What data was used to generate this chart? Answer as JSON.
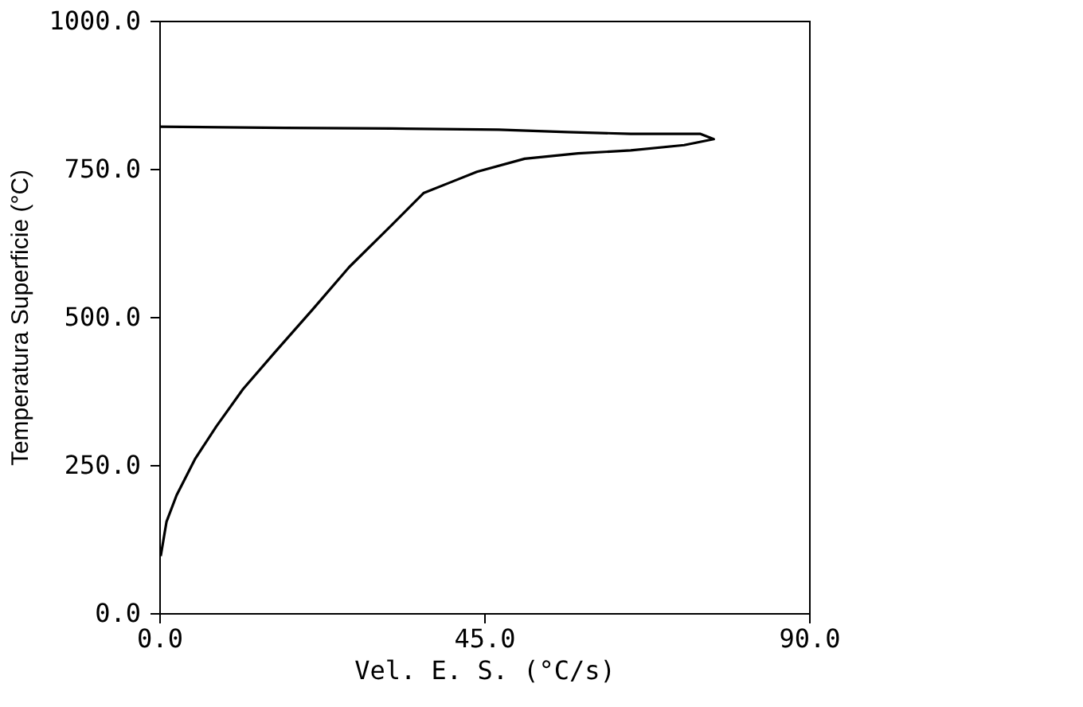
{
  "chart_data": {
    "type": "line",
    "xlabel": "Vel. E. S. (°C/s)",
    "ylabel": "Temperatura Superficie (°C)",
    "xlim": [
      0,
      90
    ],
    "ylim": [
      0,
      1000
    ],
    "xticks": [
      {
        "value": 0,
        "label": "0.0"
      },
      {
        "value": 45,
        "label": "45.0"
      },
      {
        "value": 90,
        "label": "90.0"
      }
    ],
    "yticks": [
      {
        "value": 0,
        "label": "0.0"
      },
      {
        "value": 250,
        "label": "250.0"
      },
      {
        "value": 500,
        "label": "500.0"
      },
      {
        "value": 750,
        "label": "750.0"
      },
      {
        "value": 1000,
        "label": "1000.0"
      }
    ],
    "grid": false,
    "series": [
      {
        "color": "#000000",
        "x": [
          0.2,
          1.0,
          2.4,
          5.0,
          7.9,
          11.6,
          16.0,
          21.2,
          26.3,
          32.2,
          36.6,
          40.3,
          44.0,
          50.6,
          58.0,
          65.3,
          72.7,
          76.8,
          74.9,
          65.3,
          56.5,
          47.0,
          32.2,
          17.5,
          0
        ],
        "values": [
          96,
          154,
          199,
          261,
          315,
          378,
          440,
          512,
          584,
          655,
          709,
          727,
          745,
          767,
          776,
          781,
          790,
          800,
          809,
          809,
          812,
          816,
          818,
          819,
          821
        ]
      }
    ]
  }
}
